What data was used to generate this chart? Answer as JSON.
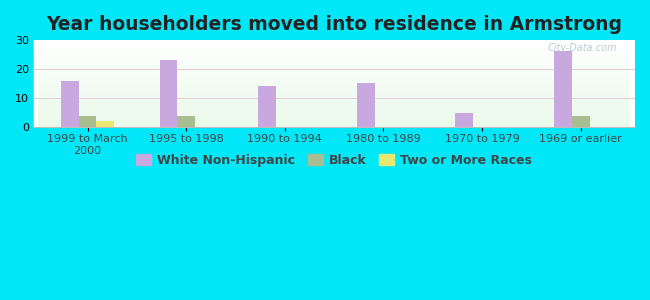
{
  "title": "Year householders moved into residence in Armstrong",
  "categories": [
    "1999 to March\n2000",
    "1995 to 1998",
    "1990 to 1994",
    "1980 to 1989",
    "1970 to 1979",
    "1969 or earlier"
  ],
  "white_non_hispanic": [
    16,
    23,
    14,
    15,
    5,
    26
  ],
  "black": [
    4,
    4,
    0,
    0,
    0,
    4
  ],
  "two_or_more_races": [
    2,
    0,
    0,
    0,
    0,
    0
  ],
  "white_color": "#c9a8e0",
  "black_color": "#a8be90",
  "two_more_color": "#e8e870",
  "bg_outer": "#00e8f8",
  "ylim": [
    0,
    30
  ],
  "yticks": [
    0,
    10,
    20,
    30
  ],
  "bar_width": 0.18,
  "title_fontsize": 13.5,
  "tick_fontsize": 8.0,
  "legend_fontsize": 9
}
